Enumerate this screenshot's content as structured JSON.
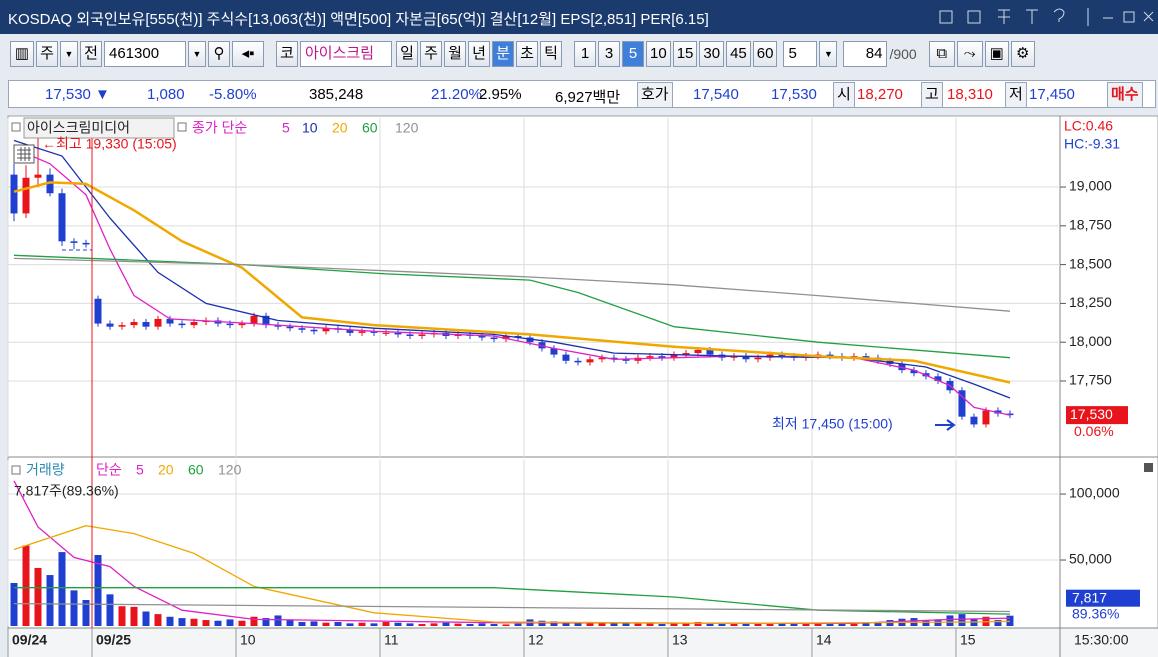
{
  "header": {
    "title": "KOSDAQ 외국인보유[555(천)] 주식수[13,063(천)] 액면[500] 자본금[65(억)] 결산[12월] EPS[2,851] PER[6.15]"
  },
  "toolbar": {
    "market": "주",
    "mode": "전",
    "code": "461300",
    "name_prefix": "코",
    "name": "아이스크림",
    "periods": [
      "일",
      "주",
      "월",
      "년",
      "분",
      "초",
      "틱"
    ],
    "selected_period_index": 4,
    "minutes": [
      "1",
      "3",
      "5",
      "10",
      "15",
      "30",
      "45",
      "60"
    ],
    "selected_minute_index": 2,
    "interval": "5",
    "count": "84",
    "total": "/900"
  },
  "quote": {
    "price": "17,530 ▼",
    "change": "1,080",
    "rate": "-5.80%",
    "volume": "385,248",
    "ratio1": "21.20%",
    "ratio2": "2.95%",
    "amount": "6,927백만",
    "bid_label": "호가",
    "ask": "17,540",
    "bid": "17,530",
    "open_label": "시",
    "open": "18,270",
    "high_label": "고",
    "high": "18,310",
    "low_label": "저",
    "low": "17,450",
    "button": "매수"
  },
  "chart_data": [
    {
      "type": "candlestick",
      "title": "아이스크림미디어",
      "legend_label": "종가 단순",
      "up_color": "#e8141c",
      "down_color": "#1f3fd1",
      "xlim": [
        -0.5,
        87.17
      ],
      "ylim": [
        17260,
        19445
      ],
      "yticks": [
        {
          "value": 19000,
          "label": "19,000"
        },
        {
          "value": 18750,
          "label": "18,750"
        },
        {
          "value": 18500,
          "label": "18,500"
        },
        {
          "value": 18250,
          "label": "18,250"
        },
        {
          "value": 18000,
          "label": "18,000"
        },
        {
          "value": 17750,
          "label": "17,750"
        }
      ],
      "grid": true,
      "open": [
        19080,
        18830,
        19060,
        19080,
        18960,
        18650,
        18640,
        18280,
        18120,
        18100,
        18110,
        18130,
        18100,
        18150,
        18120,
        18110,
        18130,
        18140,
        18120,
        18110,
        18120,
        18170,
        18110,
        18100,
        18090,
        18080,
        18070,
        18090,
        18080,
        18060,
        18070,
        18060,
        18060,
        18050,
        18040,
        18050,
        18060,
        18040,
        18050,
        18040,
        18030,
        18020,
        18040,
        18030,
        18000,
        17960,
        17920,
        17880,
        17870,
        17890,
        17900,
        17890,
        17880,
        17900,
        17910,
        17900,
        17920,
        17930,
        17950,
        17920,
        17900,
        17910,
        17890,
        17900,
        17920,
        17910,
        17900,
        17910,
        17920,
        17910,
        17900,
        17910,
        17900,
        17880,
        17860,
        17820,
        17800,
        17780,
        17750,
        17690,
        17520,
        17470,
        17560,
        17540
      ],
      "high": [
        19150,
        19140,
        19330,
        19120,
        18990,
        18670,
        18660,
        18300,
        18140,
        18130,
        18150,
        18150,
        18170,
        18170,
        18140,
        18150,
        18160,
        18160,
        18140,
        18140,
        18190,
        18190,
        18130,
        18120,
        18110,
        18100,
        18110,
        18110,
        18100,
        18090,
        18090,
        18080,
        18080,
        18070,
        18070,
        18080,
        18080,
        18070,
        18070,
        18060,
        18050,
        18060,
        18060,
        18050,
        18020,
        17980,
        17940,
        17900,
        17910,
        17920,
        17920,
        17910,
        17920,
        17930,
        17930,
        17940,
        17950,
        17970,
        17970,
        17940,
        17930,
        17930,
        17920,
        17940,
        17940,
        17930,
        17930,
        17940,
        17940,
        17930,
        17930,
        17930,
        17920,
        17900,
        17880,
        17840,
        17820,
        17800,
        17770,
        17710,
        17540,
        17580,
        17580,
        17560
      ],
      "low": [
        18780,
        18800,
        19000,
        18940,
        18620,
        18600,
        18610,
        18100,
        18080,
        18080,
        18090,
        18080,
        18080,
        18100,
        18090,
        18090,
        18110,
        18100,
        18090,
        18090,
        18100,
        18090,
        18080,
        18070,
        18060,
        18050,
        18050,
        18060,
        18040,
        18040,
        18040,
        18040,
        18030,
        18020,
        18020,
        18030,
        18020,
        18020,
        18020,
        18010,
        18000,
        18000,
        18010,
        17980,
        17940,
        17900,
        17860,
        17850,
        17850,
        17870,
        17870,
        17860,
        17860,
        17880,
        17880,
        17880,
        17900,
        17910,
        17900,
        17880,
        17880,
        17870,
        17870,
        17880,
        17890,
        17880,
        17880,
        17890,
        17890,
        17880,
        17880,
        17880,
        17860,
        17840,
        17800,
        17780,
        17760,
        17730,
        17670,
        17500,
        17450,
        17450,
        17520,
        17510
      ],
      "close": [
        18830,
        19060,
        19080,
        18960,
        18650,
        18640,
        18630,
        18120,
        18100,
        18110,
        18130,
        18100,
        18150,
        18120,
        18110,
        18130,
        18140,
        18120,
        18110,
        18120,
        18170,
        18110,
        18100,
        18090,
        18080,
        18070,
        18090,
        18080,
        18060,
        18070,
        18060,
        18060,
        18050,
        18040,
        18050,
        18060,
        18040,
        18050,
        18040,
        18030,
        18020,
        18040,
        18030,
        18000,
        17960,
        17920,
        17880,
        17870,
        17890,
        17900,
        17890,
        17880,
        17900,
        17910,
        17900,
        17920,
        17930,
        17950,
        17920,
        17900,
        17910,
        17890,
        17900,
        17920,
        17910,
        17900,
        17910,
        17920,
        17910,
        17900,
        17910,
        17900,
        17880,
        17860,
        17820,
        17800,
        17780,
        17750,
        17690,
        17520,
        17470,
        17560,
        17540,
        17530
      ],
      "series": [
        {
          "name": "5",
          "color": "#e020c8",
          "x": [
            0,
            3,
            6,
            8,
            10,
            13,
            20,
            30,
            40,
            45,
            50,
            60,
            70,
            75,
            78,
            80,
            83
          ],
          "values": [
            19250,
            19150,
            18950,
            18600,
            18300,
            18150,
            18120,
            18070,
            18040,
            17960,
            17890,
            17910,
            17900,
            17820,
            17720,
            17580,
            17530
          ]
        },
        {
          "name": "10",
          "color": "#1a2fb0",
          "x": [
            0,
            4,
            8,
            12,
            16,
            22,
            30,
            40,
            45,
            50,
            60,
            70,
            76,
            80,
            83
          ],
          "values": [
            19300,
            19200,
            18800,
            18450,
            18250,
            18140,
            18090,
            18050,
            18000,
            17930,
            17910,
            17900,
            17840,
            17730,
            17640
          ]
        },
        {
          "name": "20",
          "color": "#f0a800",
          "x": [
            0,
            3,
            6,
            10,
            14,
            19,
            24,
            30,
            43,
            55,
            67,
            75,
            83
          ],
          "values": [
            18970,
            19030,
            19020,
            18850,
            18650,
            18480,
            18160,
            18110,
            18050,
            17970,
            17910,
            17880,
            17740
          ]
        },
        {
          "name": "60",
          "color": "#20a040",
          "x": [
            0,
            19,
            31,
            43,
            47,
            55,
            67,
            83
          ],
          "values": [
            18560,
            18500,
            18440,
            18400,
            18320,
            18100,
            18000,
            17900
          ]
        },
        {
          "name": "120",
          "color": "#909090",
          "x": [
            0,
            19,
            31,
            43,
            55,
            67,
            83
          ],
          "values": [
            18540,
            18500,
            18460,
            18420,
            18370,
            18300,
            18200
          ]
        }
      ],
      "annotations": [
        "←최고 19,330 (15:05)",
        "최저 17,450 (15:00)"
      ],
      "side_labels": [
        "LC:0.46",
        "HC:-9.31",
        "17,530",
        "0.06%"
      ]
    },
    {
      "type": "bar",
      "title": "거래량",
      "legend_label": "단순",
      "note": "7,817주(89.36%)",
      "xlim": [
        -0.5,
        87.17
      ],
      "ylim": [
        0,
        125800
      ],
      "yticks": [
        {
          "value": 100000,
          "label": "100,000"
        },
        {
          "value": 50000,
          "label": "50,000"
        }
      ],
      "xticks": [
        {
          "value": -0.5,
          "label": "09/24"
        },
        {
          "value": 6.5,
          "label": "09/25"
        },
        {
          "value": 18.5,
          "label": "10"
        },
        {
          "value": 30.5,
          "label": "11"
        },
        {
          "value": 42.5,
          "label": "12"
        },
        {
          "value": 54.5,
          "label": "13"
        },
        {
          "value": 66.5,
          "label": "14"
        },
        {
          "value": 78.5,
          "label": "15"
        }
      ],
      "grid": true,
      "values": [
        32600,
        61000,
        44000,
        38600,
        56000,
        27000,
        19700,
        53800,
        24000,
        15000,
        14500,
        11000,
        9000,
        7000,
        6000,
        5500,
        4500,
        4000,
        5000,
        4000,
        7000,
        6000,
        8000,
        5000,
        3000,
        3500,
        2500,
        3000,
        2000,
        2500,
        2000,
        3000,
        2500,
        2000,
        1500,
        2000,
        2500,
        1800,
        1500,
        2000,
        1500,
        1200,
        1800,
        5000,
        4000,
        3500,
        3000,
        2500,
        3000,
        2000,
        2500,
        2000,
        1800,
        2000,
        1500,
        2500,
        2000,
        3000,
        2500,
        2000,
        1500,
        2000,
        1800,
        1500,
        2000,
        1800,
        1500,
        2000,
        1500,
        1800,
        1500,
        2000,
        3000,
        4500,
        5500,
        6000,
        4000,
        5000,
        8000,
        9000,
        5000,
        7000,
        4500,
        7817
      ],
      "series": [
        {
          "name": "5",
          "color": "#e020c8",
          "x": [
            0,
            2,
            5,
            8,
            10,
            14,
            20,
            40,
            70,
            78,
            83
          ],
          "values": [
            110000,
            75000,
            52000,
            45000,
            30000,
            12000,
            5000,
            2500,
            2000,
            5000,
            6000
          ]
        },
        {
          "name": "20",
          "color": "#f0a800",
          "x": [
            0,
            6,
            10,
            15,
            20,
            30,
            40,
            60,
            80,
            83
          ],
          "values": [
            58000,
            76000,
            70000,
            55000,
            30000,
            10000,
            3000,
            2000,
            3000,
            3500
          ]
        },
        {
          "name": "60",
          "color": "#20a040",
          "x": [
            0,
            40,
            55,
            67,
            83
          ],
          "values": [
            29000,
            29000,
            22000,
            12000,
            9000
          ]
        },
        {
          "name": "120",
          "color": "#909090",
          "x": [
            0,
            83
          ],
          "values": [
            17000,
            11000
          ]
        }
      ],
      "side_labels": [
        "7,817",
        "89.36%"
      ],
      "time_label": "15:30:00"
    }
  ]
}
